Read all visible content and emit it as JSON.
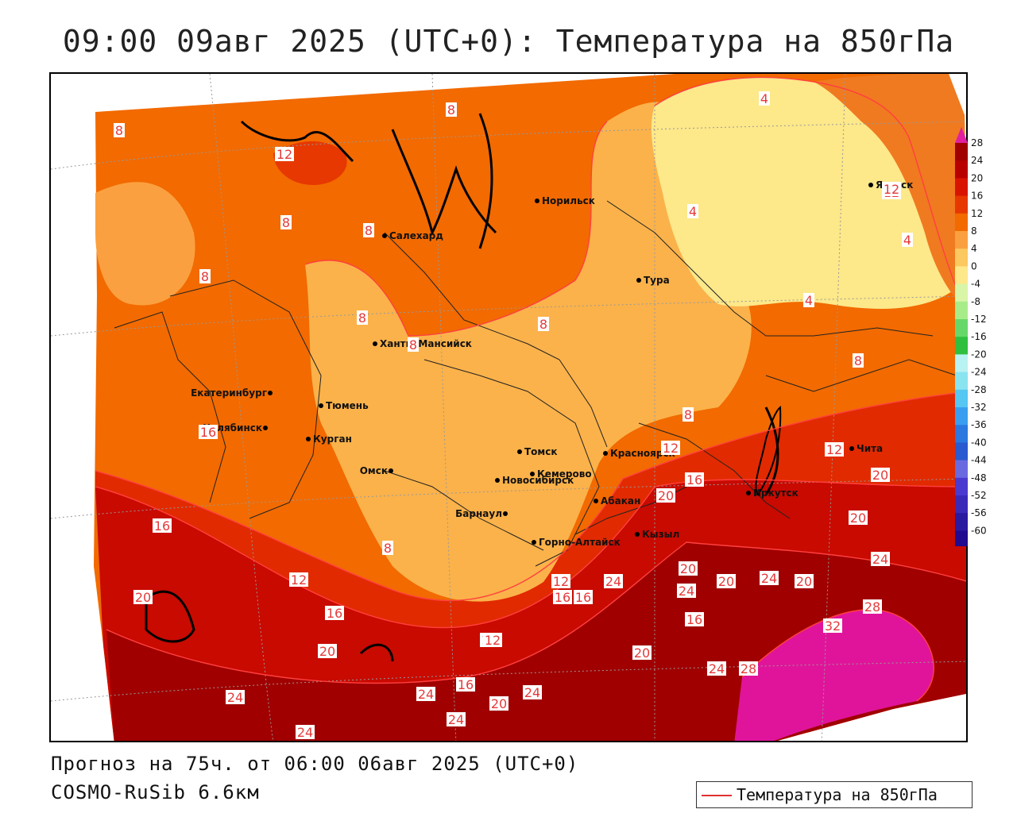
{
  "title": "09:00 09авг 2025 (UTC+0): Температура на 850гПа",
  "footer": {
    "forecast": "Прогноз на 75ч. от 06:00 06авг 2025 (UTC+0)",
    "model": "COSMO-RuSib 6.6км"
  },
  "legend": {
    "label": "Температура на 850гПа",
    "line_color": "#e23030"
  },
  "colorbar": {
    "levels": [
      {
        "label": "28",
        "color": "#a00000"
      },
      {
        "label": "24",
        "color": "#b80000"
      },
      {
        "label": "20",
        "color": "#d81400"
      },
      {
        "label": "16",
        "color": "#e63800"
      },
      {
        "label": "12",
        "color": "#f26a00"
      },
      {
        "label": "8",
        "color": "#fba040"
      },
      {
        "label": "4",
        "color": "#fcc860"
      },
      {
        "label": "0",
        "color": "#fde88a"
      },
      {
        "label": "-4",
        "color": "#d8f5a8"
      },
      {
        "label": "-8",
        "color": "#a8ec8a"
      },
      {
        "label": "-12",
        "color": "#66d86a"
      },
      {
        "label": "-16",
        "color": "#30c040"
      },
      {
        "label": "-20",
        "color": "#b8f2f2"
      },
      {
        "label": "-24",
        "color": "#8ae4f0"
      },
      {
        "label": "-28",
        "color": "#56c6f2"
      },
      {
        "label": "-32",
        "color": "#3a9ef0"
      },
      {
        "label": "-36",
        "color": "#2a78e0"
      },
      {
        "label": "-40",
        "color": "#2a5ad0"
      },
      {
        "label": "-44",
        "color": "#6a6ae0"
      },
      {
        "label": "-48",
        "color": "#4a3ad0"
      },
      {
        "label": "-52",
        "color": "#3a2ab8"
      },
      {
        "label": "-56",
        "color": "#2a1aa0"
      },
      {
        "label": "-60",
        "color": "#200a90"
      }
    ],
    "top_color": "#e020a0",
    "bottom_color": "#9020c0"
  },
  "cities": [
    {
      "name": "Норильск"
    },
    {
      "name": "Якутск"
    },
    {
      "name": "Салехард"
    },
    {
      "name": "Тура"
    },
    {
      "name": "Ханты-Мансийск"
    },
    {
      "name": "Екатеринбург"
    },
    {
      "name": "Тюмень"
    },
    {
      "name": "Челябинск"
    },
    {
      "name": "Курган"
    },
    {
      "name": "Омск"
    },
    {
      "name": "Новосибирск"
    },
    {
      "name": "Томск"
    },
    {
      "name": "Кемерово"
    },
    {
      "name": "Красноярск"
    },
    {
      "name": "Барнаул"
    },
    {
      "name": "Абакан"
    },
    {
      "name": "Горно-Алтайск"
    },
    {
      "name": "Кызыл"
    },
    {
      "name": "Иркутск"
    },
    {
      "name": "Чита"
    }
  ],
  "contour_labels": [
    "8",
    "8",
    "12",
    "8",
    "8",
    "8",
    "8",
    "8",
    "8",
    "4",
    "4",
    "12",
    "4",
    "4",
    "8",
    "8",
    "12",
    "12",
    "16",
    "16",
    "16",
    "12",
    "16",
    "20",
    "16",
    "12",
    "20",
    "24",
    "20",
    "24",
    "20",
    "24",
    "28",
    "24",
    "24",
    "20",
    "20",
    "24",
    "16",
    "12",
    "16",
    "24",
    "28",
    "32",
    "16",
    "20",
    "24",
    "20",
    "24",
    "24",
    "8",
    "12",
    "12",
    "20",
    "20",
    "20"
  ]
}
